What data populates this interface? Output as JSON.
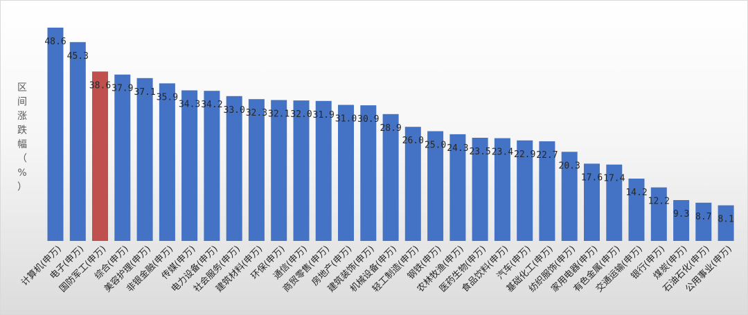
{
  "chart_data": {
    "type": "bar",
    "ylabel": "区间涨跌幅（%）",
    "ylim": [
      0,
      50
    ],
    "grid": false,
    "legend": "none",
    "bar_color": "#4472c4",
    "highlight_color": "#c0504d",
    "highlight_category": "国防军工(申万)",
    "categories": [
      "计算机(申万)",
      "电子(申万)",
      "国防军工(申万)",
      "综合(申万)",
      "美容护理(申万)",
      "非银金融(申万)",
      "传媒(申万)",
      "电力设备(申万)",
      "社会服务(申万)",
      "建筑材料(申万)",
      "环保(申万)",
      "通信(申万)",
      "商贸零售(申万)",
      "房地产(申万)",
      "建筑装饰(申万)",
      "机械设备(申万)",
      "轻工制造(申万)",
      "钢铁(申万)",
      "农林牧渔(申万)",
      "医药生物(申万)",
      "食品饮料(申万)",
      "汽车(申万)",
      "基础化工(申万)",
      "纺织服饰(申万)",
      "家用电器(申万)",
      "有色金属(申万)",
      "交通运输(申万)",
      "银行(申万)",
      "煤炭(申万)",
      "石油石化(申万)",
      "公用事业(申万)"
    ],
    "values": [
      48.6,
      45.3,
      38.6,
      37.9,
      37.1,
      35.9,
      34.3,
      34.2,
      33.0,
      32.3,
      32.1,
      32.0,
      31.9,
      31.0,
      30.9,
      28.9,
      26.0,
      25.0,
      24.3,
      23.5,
      23.4,
      22.9,
      22.7,
      20.3,
      17.6,
      17.4,
      14.2,
      12.2,
      9.3,
      8.7,
      8.1
    ],
    "value_labels": [
      "48.6",
      "45.3",
      "38.6",
      "37.9",
      "37.1",
      "35.9",
      "34.3",
      "34.2",
      "33.0",
      "32.3",
      "32.1",
      "32.0",
      "31.9",
      "31.0",
      "30.9",
      "28.9",
      "26.0",
      "25.0",
      "24.3",
      "23.5",
      "23.4",
      "22.9",
      "22.7",
      "20.3",
      "17.6",
      "17.4",
      "14.2",
      "12.2",
      "9.3",
      "8.7",
      "8.1"
    ]
  }
}
